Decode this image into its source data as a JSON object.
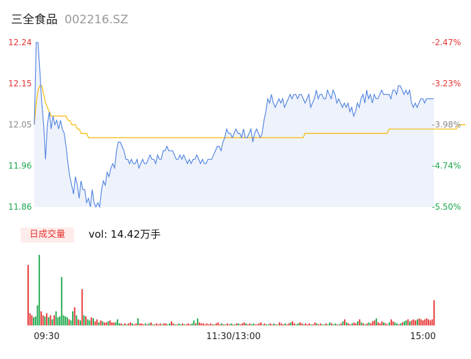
{
  "header": {
    "name": "三全食品",
    "code": "002216.SZ"
  },
  "volume_panel": {
    "label": "日成交量",
    "summary": "vol: 14.42万手"
  },
  "colors": {
    "price_line": "#4a7fe0",
    "avg_line": "#f5b800",
    "area_fill": "#eef2fb",
    "up": "#e63232",
    "down": "#1aa64a",
    "axis_text": "#888888"
  },
  "chart_data": [
    {
      "type": "line",
      "title": "",
      "xlabel": "",
      "ylabel": "",
      "ylim": [
        11.86,
        12.24
      ],
      "y_ticks_left": [
        "12.24",
        "12.15",
        "12.05",
        "11.96",
        "11.86"
      ],
      "y_ticks_right": [
        "-2.47%",
        "-3.23%",
        "-3.98%",
        "-4.74%",
        "-5.50%"
      ],
      "x_ticks": [
        "09:30",
        "11:30/13:00",
        "15:00"
      ],
      "grid": false,
      "series": [
        {
          "role": "price",
          "values": [
            12.05,
            12.24,
            12.24,
            12.17,
            12.1,
            12.05,
            11.97,
            12.05,
            12.08,
            12.04,
            12.07,
            12.05,
            12.06,
            12.04,
            12.06,
            12.04,
            12.03,
            12.0,
            11.96,
            11.93,
            11.91,
            11.89,
            11.93,
            11.91,
            11.88,
            11.92,
            11.9,
            11.9,
            11.87,
            11.88,
            11.86,
            11.9,
            11.87,
            11.86,
            11.87,
            11.86,
            11.9,
            11.92,
            11.91,
            11.94,
            11.93,
            11.95,
            11.96,
            11.95,
            11.99,
            12.01,
            12.01,
            12.0,
            11.99,
            11.97,
            11.97,
            11.96,
            11.97,
            11.96,
            11.96,
            11.97,
            11.95,
            11.96,
            11.97,
            11.96,
            11.96,
            11.97,
            11.98,
            11.97,
            11.97,
            11.96,
            11.98,
            11.97,
            11.97,
            11.99,
            11.99,
            12.0,
            11.99,
            11.99,
            11.99,
            11.98,
            11.97,
            11.97,
            11.98,
            11.97,
            11.98,
            11.97,
            11.96,
            11.97,
            11.96,
            11.97,
            11.97,
            11.98,
            11.97,
            11.96,
            11.97,
            11.96,
            11.96,
            11.97,
            11.97,
            11.97,
            11.98,
            11.99,
            12.0,
            12.0,
            11.99,
            12.01,
            12.02,
            12.04,
            12.03,
            12.03,
            12.02,
            12.03,
            12.04,
            12.03,
            12.03,
            12.02,
            12.04,
            12.02,
            12.02,
            12.03,
            12.04,
            12.01,
            12.03,
            12.04,
            12.03,
            12.02,
            12.03,
            12.06,
            12.08,
            12.11,
            12.1,
            12.12,
            12.1,
            12.09,
            12.1,
            12.11,
            12.1,
            12.11,
            12.09,
            12.1,
            12.11,
            12.12,
            12.11,
            12.12,
            12.12,
            12.11,
            12.12,
            12.12,
            12.11,
            12.1,
            12.11,
            12.12,
            12.09,
            12.1,
            12.11,
            12.13,
            12.11,
            12.12,
            12.12,
            12.11,
            12.11,
            12.13,
            12.12,
            12.11,
            12.13,
            12.12,
            12.1,
            12.11,
            12.1,
            12.09,
            12.1,
            12.09,
            12.1,
            12.08,
            12.09,
            12.07,
            12.08,
            12.1,
            12.09,
            12.11,
            12.12,
            12.1,
            12.13,
            12.11,
            12.12,
            12.1,
            12.12,
            12.11,
            12.11,
            12.12,
            12.13,
            12.12,
            12.12,
            12.12,
            12.12,
            12.11,
            12.13,
            12.13,
            12.12,
            12.14,
            12.14,
            12.13,
            12.12,
            12.13,
            12.12,
            12.13,
            12.1,
            12.09,
            12.1,
            12.09,
            12.1,
            12.11,
            12.11,
            12.1,
            12.11,
            12.11,
            12.11,
            12.11,
            12.11
          ]
        },
        {
          "role": "average",
          "values": [
            12.05,
            12.1,
            12.13,
            12.14,
            12.14,
            12.12,
            12.1,
            12.09,
            12.08,
            12.07,
            12.07,
            12.07,
            12.07,
            12.07,
            12.07,
            12.07,
            12.07,
            12.07,
            12.06,
            12.06,
            12.05,
            12.05,
            12.05,
            12.04,
            12.04,
            12.03,
            12.03,
            12.03,
            12.03,
            12.02,
            12.02,
            12.02,
            12.02,
            12.02,
            12.02,
            12.02,
            12.02,
            12.02,
            12.02,
            12.02,
            12.02,
            12.02,
            12.02,
            12.02,
            12.02,
            12.02,
            12.02,
            12.02,
            12.02,
            12.02,
            12.02,
            12.02,
            12.02,
            12.02,
            12.02,
            12.02,
            12.02,
            12.02,
            12.02,
            12.02,
            12.02,
            12.02,
            12.02,
            12.02,
            12.02,
            12.02,
            12.02,
            12.02,
            12.02,
            12.02,
            12.02,
            12.02,
            12.02,
            12.02,
            12.02,
            12.02,
            12.02,
            12.02,
            12.02,
            12.02,
            12.02,
            12.02,
            12.02,
            12.02,
            12.02,
            12.02,
            12.02,
            12.02,
            12.02,
            12.02,
            12.02,
            12.02,
            12.02,
            12.02,
            12.02,
            12.02,
            12.02,
            12.02,
            12.02,
            12.02,
            12.02,
            12.02,
            12.02,
            12.02,
            12.02,
            12.02,
            12.02,
            12.02,
            12.02,
            12.02,
            12.02,
            12.02,
            12.02,
            12.02,
            12.02,
            12.02,
            12.02,
            12.02,
            12.02,
            12.02,
            12.02,
            12.02,
            12.02,
            12.02,
            12.02,
            12.02,
            12.02,
            12.02,
            12.02,
            12.02,
            12.02,
            12.02,
            12.02,
            12.02,
            12.02,
            12.02,
            12.02,
            12.02,
            12.02,
            12.02,
            12.02,
            12.02,
            12.02,
            12.02,
            12.02,
            12.03,
            12.03,
            12.03,
            12.03,
            12.03,
            12.03,
            12.03,
            12.03,
            12.03,
            12.03,
            12.03,
            12.03,
            12.03,
            12.03,
            12.03,
            12.03,
            12.03,
            12.03,
            12.03,
            12.03,
            12.03,
            12.03,
            12.03,
            12.03,
            12.03,
            12.03,
            12.03,
            12.03,
            12.03,
            12.03,
            12.03,
            12.03,
            12.03,
            12.03,
            12.03,
            12.03,
            12.03,
            12.03,
            12.03,
            12.03,
            12.03,
            12.03,
            12.03,
            12.03,
            12.03,
            12.04,
            12.04,
            12.04,
            12.04,
            12.04,
            12.04,
            12.04,
            12.04,
            12.04,
            12.04,
            12.04,
            12.04,
            12.04,
            12.04,
            12.04,
            12.04,
            12.04,
            12.04,
            12.04,
            12.04,
            12.04,
            12.04,
            12.04,
            12.04,
            12.04,
            12.04,
            12.04,
            12.04,
            12.04,
            12.04,
            12.04,
            12.04,
            12.04,
            12.04,
            12.04,
            12.04,
            12.04,
            12.05,
            12.05,
            12.05,
            12.05,
            12.05
          ]
        }
      ]
    },
    {
      "type": "bar",
      "title": "",
      "series": [
        {
          "name": "",
          "values": [
            60,
            12,
            10,
            8,
            9,
            20,
            70,
            14,
            10,
            9,
            12,
            8,
            10,
            6,
            10,
            14,
            8,
            9,
            48,
            10,
            9,
            8,
            6,
            5,
            14,
            18,
            10,
            6,
            5,
            36,
            10,
            9,
            6,
            5,
            8,
            7,
            4,
            6,
            3,
            5,
            4,
            3,
            3,
            4,
            5,
            3,
            3,
            3,
            6,
            2,
            2,
            1,
            2,
            1,
            2,
            3,
            2,
            1,
            2,
            7,
            2,
            2,
            1,
            2,
            1,
            2,
            3,
            1,
            1,
            2,
            1,
            2,
            1,
            2,
            2,
            1,
            2,
            4,
            2,
            1,
            1,
            2,
            1,
            2,
            1,
            1,
            2,
            1,
            2,
            5,
            2,
            7,
            3,
            2,
            2,
            1,
            2,
            1,
            2,
            1,
            1,
            2,
            3,
            1,
            2,
            1,
            1,
            2,
            1,
            2,
            1,
            1,
            2,
            2,
            1,
            2,
            3,
            2,
            1,
            2,
            1,
            2,
            1,
            1,
            2,
            3,
            1,
            2,
            1,
            1,
            2,
            1,
            2,
            1,
            1,
            3,
            2,
            1,
            2,
            1,
            2,
            3,
            4,
            2,
            1,
            2,
            3,
            2,
            1,
            2,
            1,
            2,
            1,
            1,
            3,
            2,
            1,
            2,
            1,
            1,
            2,
            1,
            3,
            2,
            1,
            2,
            1,
            1,
            2,
            4,
            6,
            3,
            2,
            1,
            2,
            3,
            2,
            4,
            6,
            3,
            2,
            1,
            2,
            3,
            2,
            4,
            5,
            7,
            3,
            2,
            4,
            3,
            2,
            1,
            3,
            6,
            4,
            3,
            2,
            1,
            2,
            3,
            4,
            5,
            6,
            4,
            5,
            6,
            5,
            6,
            7,
            6,
            5,
            6,
            7,
            6,
            5,
            6,
            25
          ]
        }
      ]
    }
  ]
}
